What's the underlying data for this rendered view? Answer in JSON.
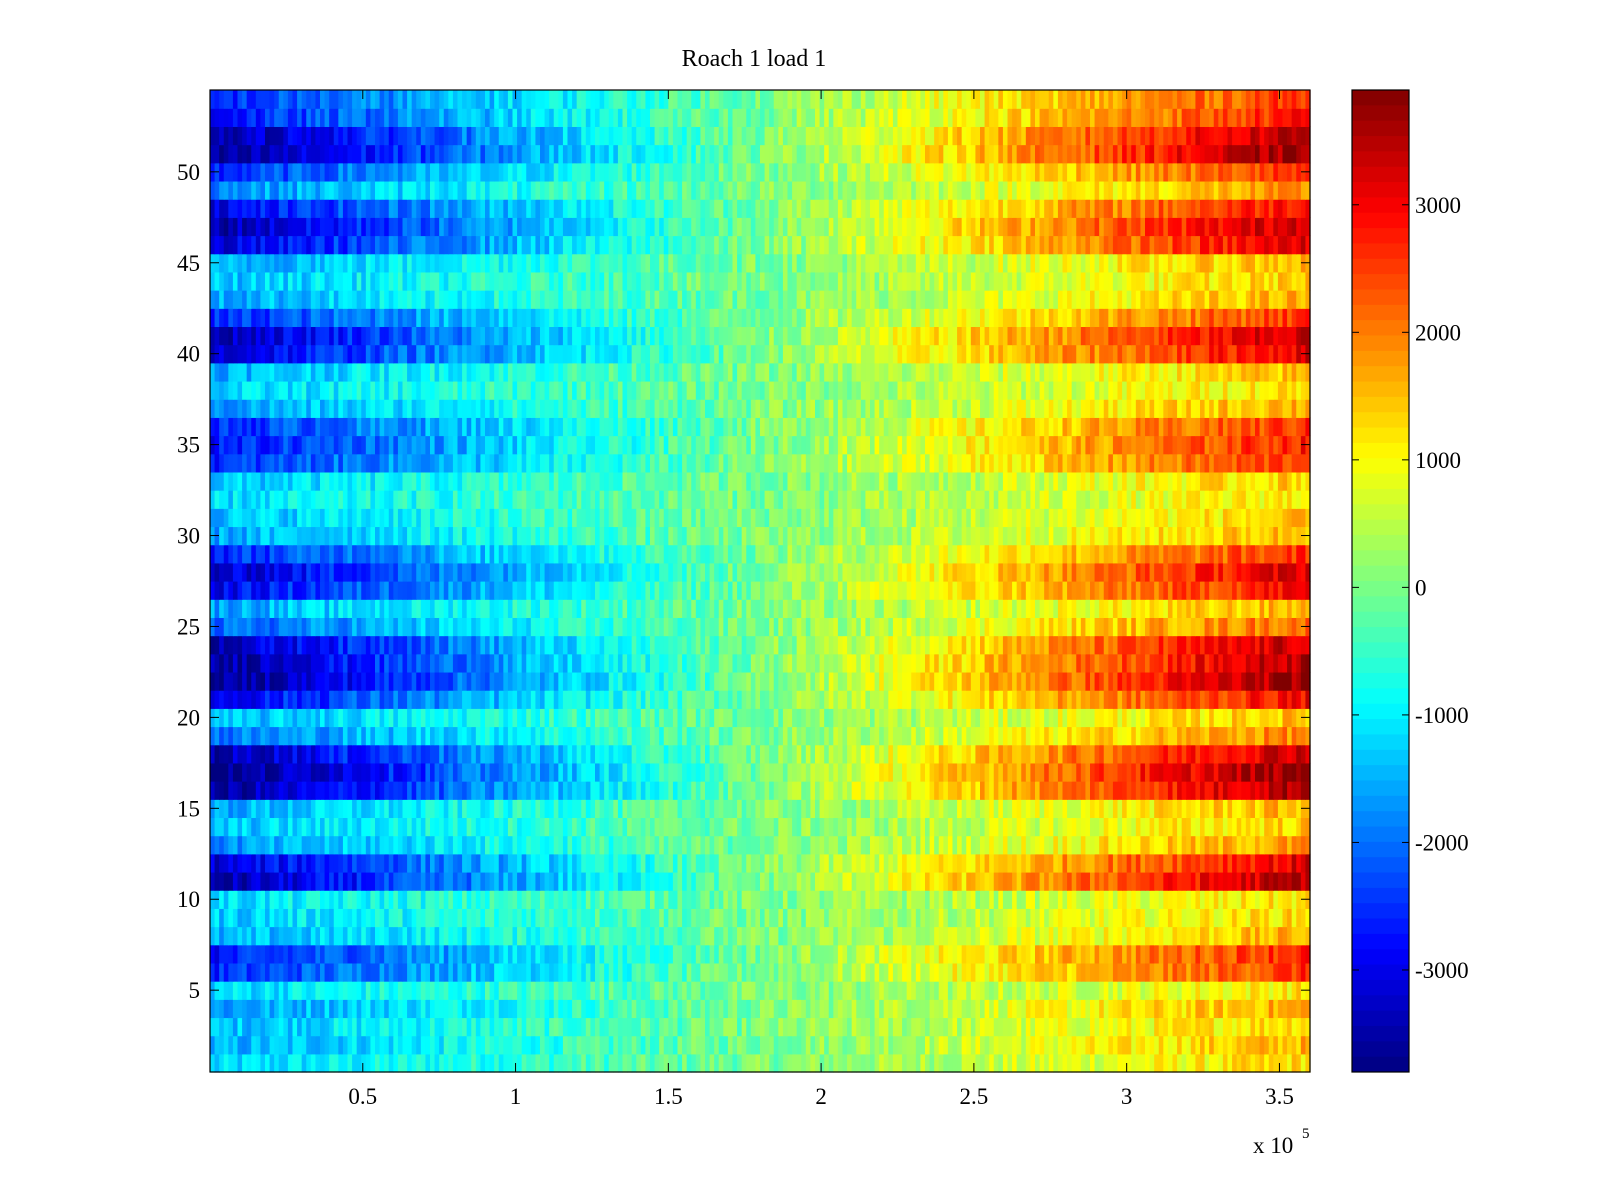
{
  "chart_data": {
    "type": "heatmap",
    "title": "Roach 1 load 1",
    "xlabel": "",
    "ylabel": "",
    "x_range": [
      0,
      360000
    ],
    "y_range": [
      0.5,
      54.5
    ],
    "x_ticks": [
      50000,
      100000,
      150000,
      200000,
      250000,
      300000,
      350000
    ],
    "x_tick_labels": [
      "0.5",
      "1",
      "1.5",
      "2",
      "2.5",
      "3",
      "3.5"
    ],
    "x_multiplier_label": {
      "base": "x 10",
      "exponent": "5"
    },
    "y_ticks": [
      5,
      10,
      15,
      20,
      25,
      30,
      35,
      40,
      45,
      50
    ],
    "y_tick_labels": [
      "5",
      "10",
      "15",
      "20",
      "25",
      "30",
      "35",
      "40",
      "45",
      "50"
    ],
    "colormap": "jet",
    "color_range": [
      -3800,
      3900
    ],
    "colorbar_ticks": [
      -3000,
      -2000,
      -1000,
      0,
      1000,
      2000,
      3000
    ],
    "colorbar_tick_labels": [
      "-3000",
      "-2000",
      "-1000",
      "0",
      "1000",
      "2000",
      "3000"
    ],
    "grid": false,
    "row_count": 54,
    "value_model": "value(row, x) ≈ amplitude[row] × (x − 180000) / 180000; high-frequency noise along x",
    "row_amplitudes": [
      1300,
      1600,
      1400,
      1700,
      1200,
      2600,
      2800,
      1600,
      1300,
      1200,
      3600,
      3200,
      1800,
      1400,
      1600,
      3700,
      3900,
      3500,
      2000,
      1500,
      3000,
      3800,
      3600,
      3400,
      2200,
      1600,
      3000,
      3300,
      2600,
      1600,
      1400,
      1200,
      1400,
      2600,
      2800,
      2600,
      1700,
      1300,
      1500,
      3200,
      3400,
      2600,
      1600,
      1400,
      1600,
      3200,
      3500,
      3000,
      1800,
      2600,
      3800,
      3600,
      2800,
      2600
    ]
  }
}
